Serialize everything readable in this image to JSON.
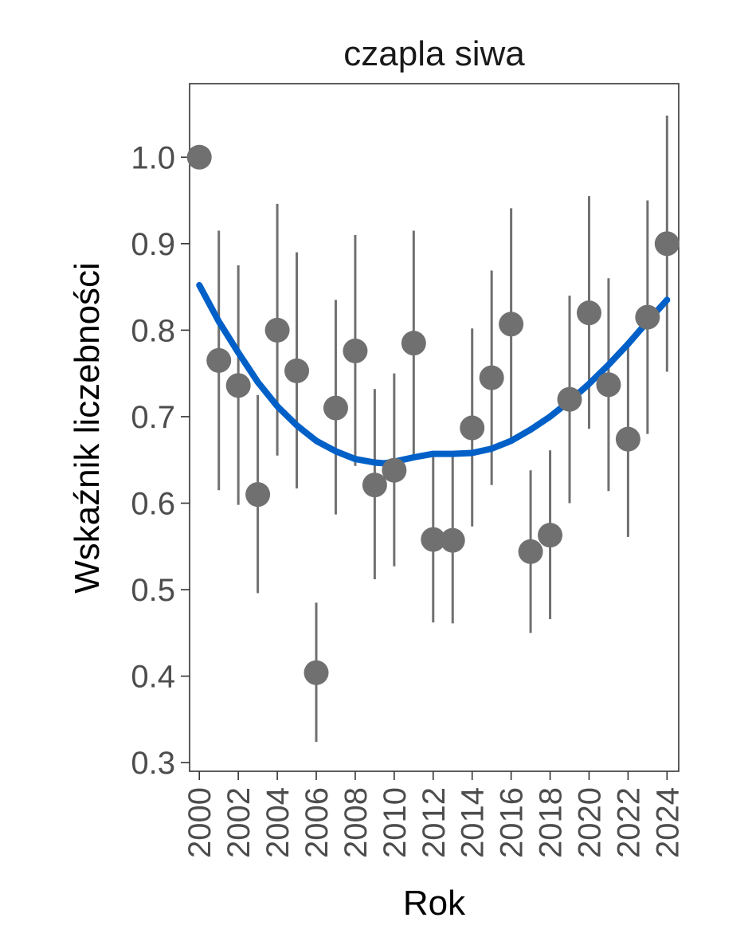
{
  "chart_data": {
    "type": "scatter",
    "title": "czapla siwa",
    "xlabel": "Rok",
    "ylabel": "Wskaźnik liczebności",
    "xlim": [
      1999.5,
      2024.6
    ],
    "ylim": [
      0.29,
      1.085
    ],
    "yticks": [
      0.3,
      0.4,
      0.5,
      0.6,
      0.7,
      0.8,
      0.9,
      1.0
    ],
    "ytick_labels": [
      "0.3",
      "0.4",
      "0.5",
      "0.6",
      "0.7",
      "0.8",
      "0.9",
      "1.0"
    ],
    "xticks": [
      2000,
      2002,
      2004,
      2006,
      2008,
      2010,
      2012,
      2014,
      2016,
      2018,
      2020,
      2022,
      2024
    ],
    "xtick_labels": [
      "2000",
      "2002",
      "2004",
      "2006",
      "2008",
      "2010",
      "2012",
      "2014",
      "2016",
      "2018",
      "2020",
      "2022",
      "2024"
    ],
    "grid": false,
    "colors": {
      "points": "#707070",
      "trend": "#0060c8",
      "frame": "#333333"
    },
    "points": [
      {
        "x": 2000,
        "y": 1.0,
        "low": null,
        "high": null
      },
      {
        "x": 2001,
        "y": 0.765,
        "low": 0.615,
        "high": 0.915
      },
      {
        "x": 2002,
        "y": 0.736,
        "low": 0.598,
        "high": 0.875
      },
      {
        "x": 2003,
        "y": 0.61,
        "low": 0.496,
        "high": 0.725
      },
      {
        "x": 2004,
        "y": 0.8,
        "low": 0.655,
        "high": 0.946
      },
      {
        "x": 2005,
        "y": 0.753,
        "low": 0.617,
        "high": 0.89
      },
      {
        "x": 2006,
        "y": 0.404,
        "low": 0.324,
        "high": 0.485
      },
      {
        "x": 2007,
        "y": 0.71,
        "low": 0.587,
        "high": 0.835
      },
      {
        "x": 2008,
        "y": 0.776,
        "low": 0.643,
        "high": 0.91
      },
      {
        "x": 2009,
        "y": 0.621,
        "low": 0.512,
        "high": 0.732
      },
      {
        "x": 2010,
        "y": 0.638,
        "low": 0.527,
        "high": 0.75
      },
      {
        "x": 2011,
        "y": 0.785,
        "low": 0.655,
        "high": 0.915
      },
      {
        "x": 2012,
        "y": 0.558,
        "low": 0.462,
        "high": 0.655
      },
      {
        "x": 2013,
        "y": 0.557,
        "low": 0.461,
        "high": 0.654
      },
      {
        "x": 2014,
        "y": 0.687,
        "low": 0.573,
        "high": 0.802
      },
      {
        "x": 2015,
        "y": 0.745,
        "low": 0.621,
        "high": 0.869
      },
      {
        "x": 2016,
        "y": 0.807,
        "low": 0.673,
        "high": 0.941
      },
      {
        "x": 2017,
        "y": 0.544,
        "low": 0.45,
        "high": 0.638
      },
      {
        "x": 2018,
        "y": 0.563,
        "low": 0.466,
        "high": 0.661
      },
      {
        "x": 2019,
        "y": 0.72,
        "low": 0.6,
        "high": 0.84
      },
      {
        "x": 2020,
        "y": 0.82,
        "low": 0.686,
        "high": 0.955
      },
      {
        "x": 2021,
        "y": 0.737,
        "low": 0.614,
        "high": 0.86
      },
      {
        "x": 2022,
        "y": 0.674,
        "low": 0.561,
        "high": 0.787
      },
      {
        "x": 2023,
        "y": 0.815,
        "low": 0.68,
        "high": 0.95
      },
      {
        "x": 2024,
        "y": 0.9,
        "low": 0.752,
        "high": 1.048
      }
    ],
    "trend": {
      "x": [
        2000,
        2001,
        2002,
        2003,
        2004,
        2005,
        2006,
        2007,
        2008,
        2009,
        2009.5,
        2010,
        2011,
        2012,
        2013,
        2014,
        2015,
        2016,
        2017,
        2018,
        2019,
        2020,
        2021,
        2022,
        2023,
        2024
      ],
      "y": [
        0.852,
        0.81,
        0.774,
        0.74,
        0.712,
        0.69,
        0.672,
        0.66,
        0.651,
        0.647,
        0.646,
        0.648,
        0.653,
        0.657,
        0.657,
        0.658,
        0.663,
        0.672,
        0.685,
        0.7,
        0.718,
        0.738,
        0.76,
        0.784,
        0.81,
        0.835
      ]
    }
  }
}
